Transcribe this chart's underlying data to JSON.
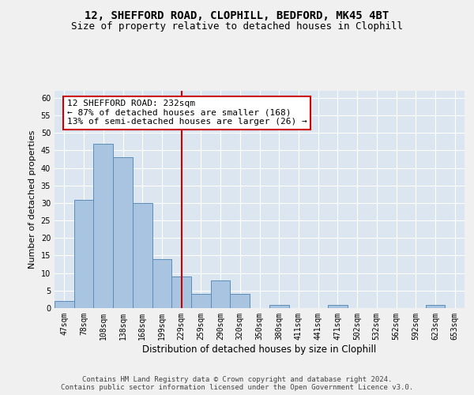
{
  "title_line1": "12, SHEFFORD ROAD, CLOPHILL, BEDFORD, MK45 4BT",
  "title_line2": "Size of property relative to detached houses in Clophill",
  "xlabel": "Distribution of detached houses by size in Clophill",
  "ylabel": "Number of detached properties",
  "categories": [
    "47sqm",
    "78sqm",
    "108sqm",
    "138sqm",
    "168sqm",
    "199sqm",
    "229sqm",
    "259sqm",
    "290sqm",
    "320sqm",
    "350sqm",
    "380sqm",
    "411sqm",
    "441sqm",
    "471sqm",
    "502sqm",
    "532sqm",
    "562sqm",
    "592sqm",
    "623sqm",
    "653sqm"
  ],
  "values": [
    2,
    31,
    47,
    43,
    30,
    14,
    9,
    4,
    8,
    4,
    0,
    1,
    0,
    0,
    1,
    0,
    0,
    0,
    0,
    1,
    0
  ],
  "bar_color": "#a8c4e0",
  "bar_edge_color": "#5b8db8",
  "background_color": "#dce6f0",
  "grid_color": "#ffffff",
  "annotation_text": "12 SHEFFORD ROAD: 232sqm\n← 87% of detached houses are smaller (168)\n13% of semi-detached houses are larger (26) →",
  "annotation_box_color": "#ffffff",
  "annotation_box_edge_color": "#cc0000",
  "vline_x_index": 6.0,
  "vline_color": "#cc0000",
  "ylim": [
    0,
    62
  ],
  "yticks": [
    0,
    5,
    10,
    15,
    20,
    25,
    30,
    35,
    40,
    45,
    50,
    55,
    60
  ],
  "footer_text": "Contains HM Land Registry data © Crown copyright and database right 2024.\nContains public sector information licensed under the Open Government Licence v3.0.",
  "title_fontsize": 10,
  "subtitle_fontsize": 9,
  "xlabel_fontsize": 8.5,
  "ylabel_fontsize": 8,
  "tick_fontsize": 7,
  "annotation_fontsize": 8,
  "footer_fontsize": 6.5,
  "fig_bg_color": "#f0f0f0"
}
